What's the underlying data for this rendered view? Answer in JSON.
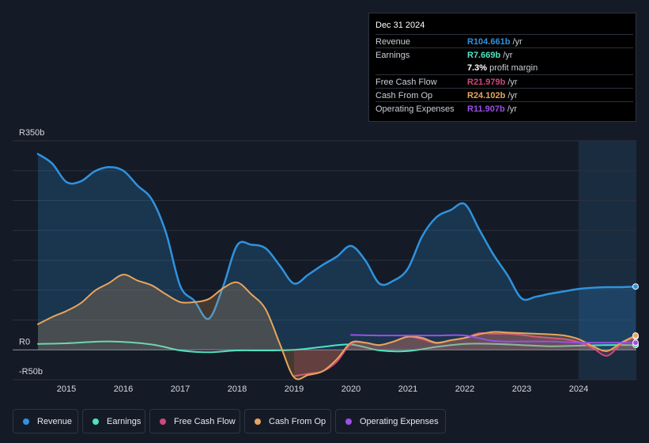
{
  "tooltip": {
    "date": "Dec 31 2024",
    "rows": [
      {
        "label": "Revenue",
        "value": "R104.661b",
        "unit": "/yr",
        "color": "#2e93e0"
      },
      {
        "label": "Earnings",
        "value": "R7.669b",
        "unit": "/yr",
        "color": "#4fe3c4"
      },
      {
        "label": "",
        "value": "7.3%",
        "unit": "profit margin",
        "color": "#ffffff"
      },
      {
        "label": "Free Cash Flow",
        "value": "R21.979b",
        "unit": "/yr",
        "color": "#d0477a"
      },
      {
        "label": "Cash From Op",
        "value": "R24.102b",
        "unit": "/yr",
        "color": "#e8a55c"
      },
      {
        "label": "Operating Expenses",
        "value": "R11.907b",
        "unit": "/yr",
        "color": "#9b4fe8"
      }
    ]
  },
  "legend": {
    "items": [
      {
        "label": "Revenue",
        "color": "#2e93e0"
      },
      {
        "label": "Earnings",
        "color": "#4fe3c4"
      },
      {
        "label": "Free Cash Flow",
        "color": "#d0477a"
      },
      {
        "label": "Cash From Op",
        "color": "#e8a55c"
      },
      {
        "label": "Operating Expenses",
        "color": "#9b4fe8"
      }
    ]
  },
  "chart_data": {
    "type": "area",
    "title": "",
    "xlabel": "",
    "ylabel": "",
    "ylim": [
      -50,
      350
    ],
    "xlim": [
      2014.5,
      2025.0
    ],
    "y_tick_labels": [
      {
        "value": 350,
        "label": "R350b"
      },
      {
        "value": 0,
        "label": "R0"
      },
      {
        "value": -50,
        "label": "-R50b"
      }
    ],
    "x_ticks": [
      {
        "value": 2015,
        "label": "2015"
      },
      {
        "value": 2016,
        "label": "2016"
      },
      {
        "value": 2017,
        "label": "2017"
      },
      {
        "value": 2018,
        "label": "2018"
      },
      {
        "value": 2019,
        "label": "2019"
      },
      {
        "value": 2020,
        "label": "2020"
      },
      {
        "value": 2021,
        "label": "2021"
      },
      {
        "value": 2022,
        "label": "2022"
      },
      {
        "value": 2023,
        "label": "2023"
      },
      {
        "value": 2024,
        "label": "2024"
      }
    ],
    "highlight_from": 2024.0,
    "series": [
      {
        "name": "Revenue",
        "color": "#2e93e0",
        "fill": true,
        "points": [
          [
            2014.5,
            328
          ],
          [
            2014.75,
            312
          ],
          [
            2015.0,
            281
          ],
          [
            2015.25,
            282
          ],
          [
            2015.5,
            299
          ],
          [
            2015.75,
            306
          ],
          [
            2016.0,
            300
          ],
          [
            2016.25,
            275
          ],
          [
            2016.5,
            252
          ],
          [
            2016.75,
            196
          ],
          [
            2017.0,
            107
          ],
          [
            2017.25,
            82
          ],
          [
            2017.5,
            52
          ],
          [
            2017.75,
            105
          ],
          [
            2018.0,
            175
          ],
          [
            2018.25,
            176
          ],
          [
            2018.5,
            170
          ],
          [
            2018.75,
            141
          ],
          [
            2019.0,
            111
          ],
          [
            2019.25,
            126
          ],
          [
            2019.5,
            142
          ],
          [
            2019.75,
            156
          ],
          [
            2020.0,
            174
          ],
          [
            2020.25,
            150
          ],
          [
            2020.5,
            111
          ],
          [
            2020.75,
            116
          ],
          [
            2021.0,
            136
          ],
          [
            2021.25,
            190
          ],
          [
            2021.5,
            222
          ],
          [
            2021.75,
            234
          ],
          [
            2022.0,
            244
          ],
          [
            2022.25,
            202
          ],
          [
            2022.5,
            160
          ],
          [
            2022.75,
            125
          ],
          [
            2023.0,
            86
          ],
          [
            2023.25,
            89
          ],
          [
            2023.5,
            94
          ],
          [
            2023.75,
            98
          ],
          [
            2024.0,
            102
          ],
          [
            2024.25,
            104
          ],
          [
            2024.5,
            105
          ],
          [
            2024.75,
            105
          ],
          [
            2025.0,
            106
          ]
        ]
      },
      {
        "name": "Earnings",
        "color": "#4fe3c4",
        "fill": false,
        "points": [
          [
            2014.5,
            10
          ],
          [
            2015.0,
            11
          ],
          [
            2015.75,
            14
          ],
          [
            2016.5,
            9
          ],
          [
            2017.0,
            -1
          ],
          [
            2017.5,
            -4
          ],
          [
            2018.0,
            -1
          ],
          [
            2018.5,
            -1
          ],
          [
            2019.0,
            0
          ],
          [
            2019.5,
            5
          ],
          [
            2020.0,
            9
          ],
          [
            2020.5,
            -1
          ],
          [
            2021.0,
            -2
          ],
          [
            2021.5,
            5
          ],
          [
            2022.0,
            10
          ],
          [
            2022.5,
            10
          ],
          [
            2023.0,
            8
          ],
          [
            2023.5,
            6
          ],
          [
            2024.0,
            7
          ],
          [
            2024.5,
            8
          ],
          [
            2025.0,
            8
          ]
        ]
      },
      {
        "name": "Free Cash Flow",
        "color": "#d0477a",
        "fill": true,
        "points": [
          [
            2019.0,
            -44
          ],
          [
            2019.25,
            -40
          ],
          [
            2019.5,
            -36
          ],
          [
            2019.75,
            -20
          ],
          [
            2020.0,
            10
          ],
          [
            2020.25,
            12
          ],
          [
            2020.5,
            8
          ],
          [
            2020.75,
            14
          ],
          [
            2021.0,
            22
          ],
          [
            2021.25,
            18
          ],
          [
            2021.5,
            11
          ],
          [
            2021.75,
            16
          ],
          [
            2022.0,
            20
          ],
          [
            2022.25,
            28
          ],
          [
            2022.5,
            27
          ],
          [
            2022.75,
            27
          ],
          [
            2023.0,
            25
          ],
          [
            2023.25,
            22
          ],
          [
            2023.5,
            20
          ],
          [
            2023.75,
            18
          ],
          [
            2024.0,
            13
          ],
          [
            2024.25,
            3
          ],
          [
            2024.5,
            -10
          ],
          [
            2024.75,
            10
          ],
          [
            2025.0,
            22
          ]
        ]
      },
      {
        "name": "Cash From Op",
        "color": "#e8a55c",
        "fill": true,
        "points": [
          [
            2014.5,
            43
          ],
          [
            2014.75,
            55
          ],
          [
            2015.0,
            65
          ],
          [
            2015.25,
            78
          ],
          [
            2015.5,
            99
          ],
          [
            2015.75,
            112
          ],
          [
            2016.0,
            126
          ],
          [
            2016.25,
            116
          ],
          [
            2016.5,
            108
          ],
          [
            2016.75,
            93
          ],
          [
            2017.0,
            80
          ],
          [
            2017.25,
            80
          ],
          [
            2017.5,
            85
          ],
          [
            2017.75,
            103
          ],
          [
            2018.0,
            113
          ],
          [
            2018.25,
            93
          ],
          [
            2018.5,
            68
          ],
          [
            2018.75,
            10
          ],
          [
            2019.0,
            -46
          ],
          [
            2019.25,
            -42
          ],
          [
            2019.5,
            -36
          ],
          [
            2019.75,
            -16
          ],
          [
            2020.0,
            12
          ],
          [
            2020.25,
            12
          ],
          [
            2020.5,
            8
          ],
          [
            2020.75,
            14
          ],
          [
            2021.0,
            22
          ],
          [
            2021.25,
            20
          ],
          [
            2021.5,
            12
          ],
          [
            2021.75,
            16
          ],
          [
            2022.0,
            20
          ],
          [
            2022.25,
            26
          ],
          [
            2022.5,
            30
          ],
          [
            2022.75,
            29
          ],
          [
            2023.0,
            28
          ],
          [
            2023.25,
            27
          ],
          [
            2023.5,
            26
          ],
          [
            2023.75,
            24
          ],
          [
            2024.0,
            18
          ],
          [
            2024.25,
            6
          ],
          [
            2024.5,
            -2
          ],
          [
            2024.75,
            12
          ],
          [
            2025.0,
            24
          ]
        ]
      },
      {
        "name": "Operating Expenses",
        "color": "#9b4fe8",
        "fill": false,
        "points": [
          [
            2020.0,
            25
          ],
          [
            2020.5,
            24
          ],
          [
            2021.0,
            24
          ],
          [
            2021.5,
            24
          ],
          [
            2022.0,
            24
          ],
          [
            2022.5,
            15
          ],
          [
            2023.0,
            14
          ],
          [
            2023.5,
            14
          ],
          [
            2024.0,
            12
          ],
          [
            2024.5,
            12
          ],
          [
            2025.0,
            12
          ]
        ]
      }
    ]
  }
}
